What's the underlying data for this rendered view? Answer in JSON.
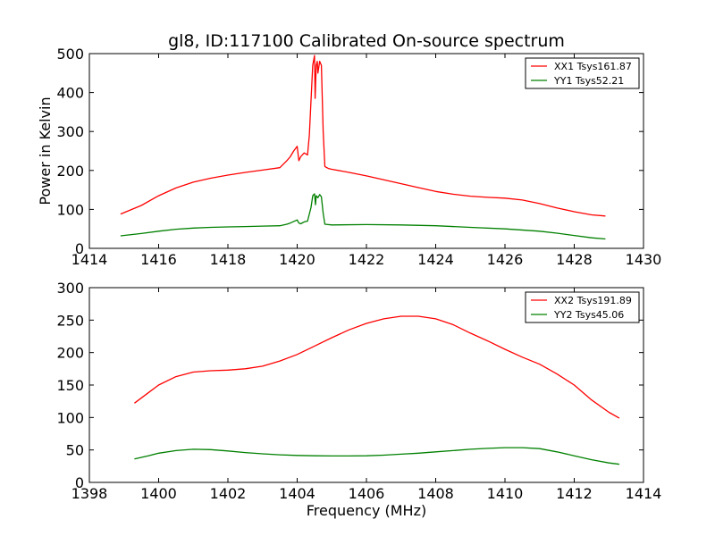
{
  "chart_data": [
    {
      "type": "line",
      "title": "gl8, ID:117100 Calibrated On-source spectrum",
      "xlabel": "",
      "ylabel": "Power in Kelvin",
      "xlim": [
        1414,
        1430
      ],
      "ylim": [
        0,
        500
      ],
      "xticks": [
        "1414",
        "1416",
        "1418",
        "1420",
        "1422",
        "1424",
        "1426",
        "1428",
        "1430"
      ],
      "yticks": [
        "0",
        "100",
        "200",
        "300",
        "400",
        "500"
      ],
      "legend_position": "top-right",
      "grid": false,
      "series": [
        {
          "name": "XX1 Tsys161.87",
          "color": "#ff0000",
          "x": [
            1414.9,
            1415.5,
            1416,
            1416.5,
            1417,
            1417.5,
            1418,
            1418.5,
            1419,
            1419.5,
            1419.7,
            1419.8,
            1419.9,
            1420,
            1420.05,
            1420.1,
            1420.2,
            1420.3,
            1420.35,
            1420.4,
            1420.45,
            1420.5,
            1420.52,
            1420.55,
            1420.58,
            1420.6,
            1420.65,
            1420.7,
            1420.75,
            1420.8,
            1420.9,
            1421,
            1421.5,
            1422,
            1422.5,
            1423,
            1423.5,
            1424,
            1424.5,
            1425,
            1425.5,
            1426,
            1426.5,
            1427,
            1427.5,
            1428,
            1428.5,
            1428.9
          ],
          "y": [
            88,
            110,
            135,
            155,
            170,
            180,
            188,
            195,
            201,
            207,
            225,
            235,
            250,
            262,
            225,
            235,
            245,
            240,
            290,
            380,
            470,
            495,
            385,
            470,
            480,
            450,
            480,
            470,
            300,
            210,
            205,
            203,
            195,
            186,
            176,
            166,
            156,
            146,
            139,
            134,
            131,
            129,
            124,
            115,
            104,
            94,
            86,
            83
          ]
        },
        {
          "name": "YY1 Tsys52.21",
          "color": "#008000",
          "x": [
            1414.9,
            1415.5,
            1416,
            1416.5,
            1417,
            1417.5,
            1418,
            1418.5,
            1419,
            1419.5,
            1419.7,
            1419.8,
            1420,
            1420.05,
            1420.1,
            1420.2,
            1420.3,
            1420.4,
            1420.45,
            1420.5,
            1420.53,
            1420.55,
            1420.6,
            1420.65,
            1420.7,
            1420.75,
            1420.8,
            1421,
            1422,
            1423,
            1424,
            1425,
            1426,
            1427,
            1427.5,
            1428,
            1428.5,
            1428.9
          ],
          "y": [
            32,
            38,
            44,
            49,
            52,
            54,
            55,
            56,
            57,
            58,
            62,
            65,
            73,
            65,
            63,
            68,
            70,
            105,
            135,
            140,
            112,
            135,
            130,
            138,
            132,
            90,
            62,
            60,
            61,
            60,
            58,
            54,
            50,
            44,
            39,
            33,
            27,
            24
          ]
        }
      ]
    },
    {
      "type": "line",
      "title": "",
      "xlabel": "Frequency (MHz)",
      "ylabel": "",
      "xlim": [
        1398,
        1414
      ],
      "ylim": [
        0,
        300
      ],
      "xticks": [
        "1398",
        "1400",
        "1402",
        "1404",
        "1406",
        "1408",
        "1410",
        "1412",
        "1414"
      ],
      "yticks": [
        "0",
        "50",
        "100",
        "150",
        "200",
        "250",
        "300"
      ],
      "legend_position": "top-right",
      "grid": false,
      "series": [
        {
          "name": "XX2 Tsys191.89",
          "color": "#ff0000",
          "x": [
            1399.3,
            1399.7,
            1400,
            1400.5,
            1401,
            1401.5,
            1402,
            1402.5,
            1403,
            1403.5,
            1404,
            1404.5,
            1405,
            1405.5,
            1406,
            1406.5,
            1407,
            1407.5,
            1408,
            1408.5,
            1409,
            1409.5,
            1410,
            1410.5,
            1411,
            1411.5,
            1412,
            1412.5,
            1413,
            1413.3
          ],
          "y": [
            122,
            138,
            150,
            163,
            170,
            172,
            173,
            175,
            179,
            187,
            197,
            210,
            223,
            235,
            245,
            252,
            256,
            256,
            252,
            243,
            230,
            218,
            205,
            193,
            182,
            167,
            150,
            127,
            108,
            99
          ]
        },
        {
          "name": "YY2 Tsys45.06",
          "color": "#008000",
          "x": [
            1399.3,
            1399.7,
            1400,
            1400.5,
            1401,
            1401.5,
            1402,
            1402.5,
            1403,
            1403.5,
            1404,
            1404.5,
            1405,
            1405.5,
            1406,
            1406.5,
            1407,
            1407.5,
            1408,
            1408.5,
            1409,
            1409.5,
            1410,
            1410.5,
            1411,
            1411.5,
            1412,
            1412.5,
            1413,
            1413.3
          ],
          "y": [
            36,
            41,
            45,
            49,
            51,
            50.5,
            48.5,
            46,
            44,
            42.5,
            41.5,
            41,
            40.8,
            40.8,
            41,
            42,
            43.5,
            45,
            47,
            49,
            51,
            52.5,
            53.5,
            53.5,
            52,
            47,
            41,
            35,
            30,
            28
          ]
        }
      ]
    }
  ]
}
